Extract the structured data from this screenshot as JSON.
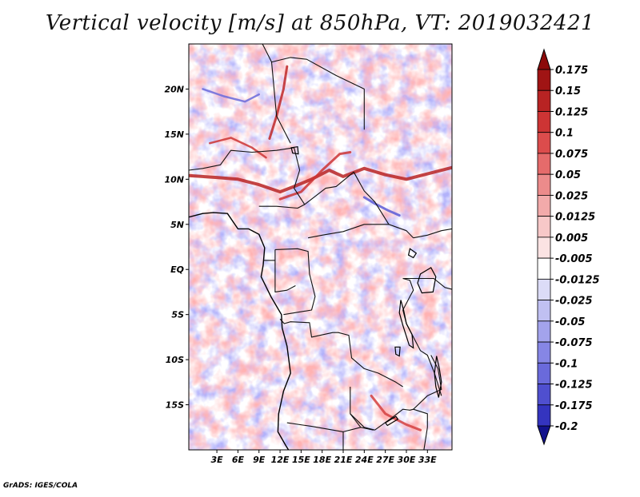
{
  "title": "Vertical velocity [m/s] at 850hPa, VT: 2019032421",
  "credit": "GrADS: IGES/COLA",
  "map": {
    "lon_range": [
      -1,
      36.5
    ],
    "lat_range": [
      -20,
      25
    ],
    "lat_ticks": [
      {
        "value": 20,
        "label": "20N"
      },
      {
        "value": 15,
        "label": "15N"
      },
      {
        "value": 10,
        "label": "10N"
      },
      {
        "value": 5,
        "label": "5N"
      },
      {
        "value": 0,
        "label": "EQ"
      },
      {
        "value": -5,
        "label": "5S"
      },
      {
        "value": -10,
        "label": "10S"
      },
      {
        "value": -15,
        "label": "15S"
      }
    ],
    "lon_ticks": [
      {
        "value": 3,
        "label": "3E"
      },
      {
        "value": 6,
        "label": "6E"
      },
      {
        "value": 9,
        "label": "9E"
      },
      {
        "value": 12,
        "label": "12E"
      },
      {
        "value": 15,
        "label": "15E"
      },
      {
        "value": 18,
        "label": "18E"
      },
      {
        "value": 21,
        "label": "21E"
      },
      {
        "value": 24,
        "label": "24E"
      },
      {
        "value": 27,
        "label": "27E"
      },
      {
        "value": 30,
        "label": "30E"
      },
      {
        "value": 33,
        "label": "33E"
      }
    ],
    "boundaries": [
      [
        [
          9.5,
          25
        ],
        [
          10.8,
          23
        ],
        [
          13.5,
          23.5
        ],
        [
          15.8,
          23.3
        ],
        [
          20,
          21.5
        ],
        [
          24,
          20
        ],
        [
          24,
          15.5
        ]
      ],
      [
        [
          10.8,
          23
        ],
        [
          11.5,
          17
        ],
        [
          13.5,
          14
        ]
      ],
      [
        [
          14,
          13.5
        ],
        [
          14.8,
          11
        ],
        [
          14,
          9
        ],
        [
          15.5,
          7.2
        ],
        [
          16.5,
          7.8
        ],
        [
          18.5,
          9
        ],
        [
          20,
          9.2
        ],
        [
          22.5,
          10.8
        ],
        [
          24,
          8.7
        ],
        [
          25.5,
          7.5
        ],
        [
          27.5,
          5
        ],
        [
          30,
          4.3
        ],
        [
          31,
          3.5
        ]
      ],
      [
        [
          -1,
          11
        ],
        [
          1,
          11.2
        ],
        [
          3.5,
          11.6
        ],
        [
          5,
          13.2
        ],
        [
          8,
          13
        ],
        [
          11.5,
          13.2
        ],
        [
          14,
          13.5
        ]
      ],
      [
        [
          9,
          7
        ],
        [
          11.5,
          7
        ],
        [
          14.5,
          6.8
        ],
        [
          15.5,
          7.2
        ]
      ],
      [
        [
          16,
          3.5
        ],
        [
          18,
          3.8
        ],
        [
          21,
          4.2
        ],
        [
          24,
          5
        ],
        [
          27.5,
          5
        ]
      ],
      [
        [
          11.3,
          2.2
        ],
        [
          14.5,
          2.3
        ],
        [
          16,
          2
        ],
        [
          16.2,
          -0.5
        ],
        [
          17,
          -3
        ],
        [
          16.5,
          -4.5
        ],
        [
          12.5,
          -5
        ]
      ],
      [
        [
          11.3,
          2.2
        ],
        [
          11.3,
          -2.5
        ],
        [
          13,
          -2.3
        ],
        [
          14.2,
          -1.8
        ]
      ],
      [
        [
          9.6,
          1
        ],
        [
          11.3,
          1
        ]
      ],
      [
        [
          12,
          -5.5
        ],
        [
          12.6,
          -6
        ],
        [
          13.5,
          -5.8
        ],
        [
          16.2,
          -5.9
        ],
        [
          16.5,
          -7.5
        ],
        [
          19.5,
          -7
        ],
        [
          20.3,
          -7
        ],
        [
          21.8,
          -7.3
        ],
        [
          22.2,
          -9.8
        ],
        [
          24,
          -11
        ],
        [
          26,
          -11.5
        ],
        [
          28.5,
          -12.5
        ],
        [
          29.5,
          -13
        ]
      ],
      [
        [
          22,
          -13
        ],
        [
          22,
          -16
        ],
        [
          24,
          -17.5
        ],
        [
          25.5,
          -17.8
        ]
      ],
      [
        [
          13,
          -17
        ],
        [
          16.5,
          -17.4
        ],
        [
          21,
          -18
        ],
        [
          23.5,
          -17.5
        ]
      ],
      [
        [
          21,
          -18
        ],
        [
          21,
          -20
        ]
      ],
      [
        [
          29.5,
          -1
        ],
        [
          30.5,
          -1.2
        ],
        [
          31,
          -2.3
        ],
        [
          30.5,
          -3
        ],
        [
          29.5,
          -4.5
        ],
        [
          30,
          -6
        ],
        [
          32,
          -9
        ],
        [
          33,
          -9.5
        ],
        [
          34,
          -11.5
        ],
        [
          35,
          -14
        ]
      ],
      [
        [
          31,
          3.5
        ],
        [
          33,
          3.8
        ],
        [
          35,
          4.3
        ],
        [
          36.5,
          4.5
        ]
      ],
      [
        [
          29.5,
          -1
        ],
        [
          33.9,
          -1
        ],
        [
          35.5,
          -2
        ],
        [
          36.5,
          -2.2
        ]
      ],
      [
        [
          33.5,
          -9.5
        ],
        [
          34.5,
          -11
        ],
        [
          35,
          -13.3
        ],
        [
          33,
          -14
        ],
        [
          31,
          -15.5
        ],
        [
          33,
          -16
        ],
        [
          33,
          -17.5
        ],
        [
          32.5,
          -20
        ]
      ],
      [
        [
          25.5,
          -17.8
        ],
        [
          28,
          -16.4
        ],
        [
          29.5,
          -15.5
        ],
        [
          30.5,
          -15.6
        ],
        [
          31,
          -15.5
        ]
      ],
      [
        [
          22,
          -16
        ],
        [
          23.5,
          -17.5
        ],
        [
          25.3,
          -17.8
        ]
      ]
    ],
    "coastline": [
      [
        -1,
        5.8
      ],
      [
        1,
        6.2
      ],
      [
        2.5,
        6.3
      ],
      [
        4.5,
        6.2
      ],
      [
        6,
        4.5
      ],
      [
        7.5,
        4.5
      ],
      [
        9,
        3.9
      ],
      [
        9.8,
        2.4
      ],
      [
        9.6,
        0.5
      ],
      [
        9.3,
        -0.8
      ],
      [
        10.7,
        -3
      ],
      [
        12.2,
        -5
      ],
      [
        12.3,
        -6.5
      ],
      [
        13,
        -8.5
      ],
      [
        13.5,
        -11.5
      ],
      [
        12.5,
        -13.5
      ],
      [
        11.8,
        -16
      ],
      [
        11.7,
        -18
      ],
      [
        12.8,
        -19.5
      ],
      [
        13.2,
        -20
      ]
    ],
    "lakes": [
      {
        "name": "Lake Victoria",
        "points": [
          [
            32,
            -0.5
          ],
          [
            33.5,
            0.2
          ],
          [
            34.2,
            -0.8
          ],
          [
            33.8,
            -2.5
          ],
          [
            32.2,
            -2.6
          ],
          [
            31.6,
            -1.5
          ]
        ]
      },
      {
        "name": "Lake Tanganyika",
        "points": [
          [
            29.2,
            -3.4
          ],
          [
            29.6,
            -4.5
          ],
          [
            30,
            -6
          ],
          [
            30.8,
            -7.2
          ],
          [
            31,
            -8.7
          ],
          [
            30.4,
            -8.4
          ],
          [
            29.5,
            -6.2
          ],
          [
            29,
            -4.8
          ]
        ]
      },
      {
        "name": "Lake Malawi",
        "points": [
          [
            34.3,
            -9.6
          ],
          [
            34.7,
            -11
          ],
          [
            35,
            -12.5
          ],
          [
            34.6,
            -14.2
          ],
          [
            34.2,
            -13
          ],
          [
            34,
            -11.5
          ]
        ]
      },
      {
        "name": "Lake Albert",
        "points": [
          [
            30.5,
            2.3
          ],
          [
            31.4,
            1.8
          ],
          [
            31,
            1.3
          ],
          [
            30.3,
            1.6
          ]
        ]
      },
      {
        "name": "Lake Chad",
        "points": [
          [
            13.6,
            13.5
          ],
          [
            14.5,
            13.6
          ],
          [
            14.6,
            12.8
          ],
          [
            13.8,
            12.9
          ]
        ]
      },
      {
        "name": "Lake Kariba",
        "points": [
          [
            27,
            -17
          ],
          [
            28.5,
            -16.3
          ],
          [
            28.8,
            -16.6
          ],
          [
            27.3,
            -17.3
          ]
        ]
      },
      {
        "name": "Lake Mweru",
        "points": [
          [
            28.4,
            -8.6
          ],
          [
            29.1,
            -8.6
          ],
          [
            29,
            -9.6
          ],
          [
            28.5,
            -9.4
          ]
        ]
      }
    ]
  },
  "colorbar": {
    "entries": [
      {
        "label": "0.175",
        "color": "#a01414"
      },
      {
        "label": "0.15",
        "color": "#b82323"
      },
      {
        "label": "0.125",
        "color": "#cd3434"
      },
      {
        "label": "0.1",
        "color": "#dc4c4c"
      },
      {
        "label": "0.075",
        "color": "#e56b6b"
      },
      {
        "label": "0.05",
        "color": "#ec8b8b"
      },
      {
        "label": "0.025",
        "color": "#f2aaaa"
      },
      {
        "label": "0.0125",
        "color": "#f7c8c8"
      },
      {
        "label": "0.005",
        "color": "#fbe3e3"
      },
      {
        "label": "-0.005",
        "color": "#ffffff"
      },
      {
        "label": "-0.0125",
        "color": "#dcdcf7"
      },
      {
        "label": "-0.025",
        "color": "#c0c0f2"
      },
      {
        "label": "-0.05",
        "color": "#a3a3ec"
      },
      {
        "label": "-0.075",
        "color": "#8686e5"
      },
      {
        "label": "-0.1",
        "color": "#6a6adb"
      },
      {
        "label": "-0.125",
        "color": "#4f4fcf"
      },
      {
        "label": "-0.175",
        "color": "#3434bf"
      },
      {
        "label": "-0.2",
        "color": "#1e1ea5"
      }
    ],
    "top_arrow_color": "#8c0a0a",
    "bottom_arrow_color": "#12128c"
  }
}
